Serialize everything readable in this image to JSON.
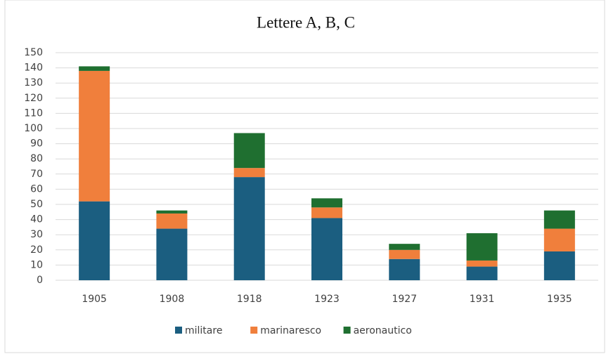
{
  "chart_data": {
    "type": "stacked_bar",
    "title": "Lettere A, B, C",
    "categories": [
      "1905",
      "1908",
      "1918",
      "1923",
      "1927",
      "1931",
      "1935"
    ],
    "series": [
      {
        "name": "militare",
        "color": "#1b5e80",
        "values": [
          52,
          34,
          68,
          41,
          14,
          9,
          19
        ]
      },
      {
        "name": "marinaresco",
        "color": "#f07f3c",
        "values": [
          86,
          10,
          6,
          7,
          6,
          4,
          15
        ]
      },
      {
        "name": "aeronautico",
        "color": "#1f6f30",
        "values": [
          3,
          2,
          23,
          6,
          4,
          18,
          12
        ]
      }
    ],
    "ylim": [
      0,
      150
    ],
    "yticks": [
      0,
      10,
      20,
      30,
      40,
      50,
      60,
      70,
      80,
      90,
      100,
      110,
      120,
      130,
      140,
      150
    ],
    "grid": true,
    "legend": "bottom"
  }
}
